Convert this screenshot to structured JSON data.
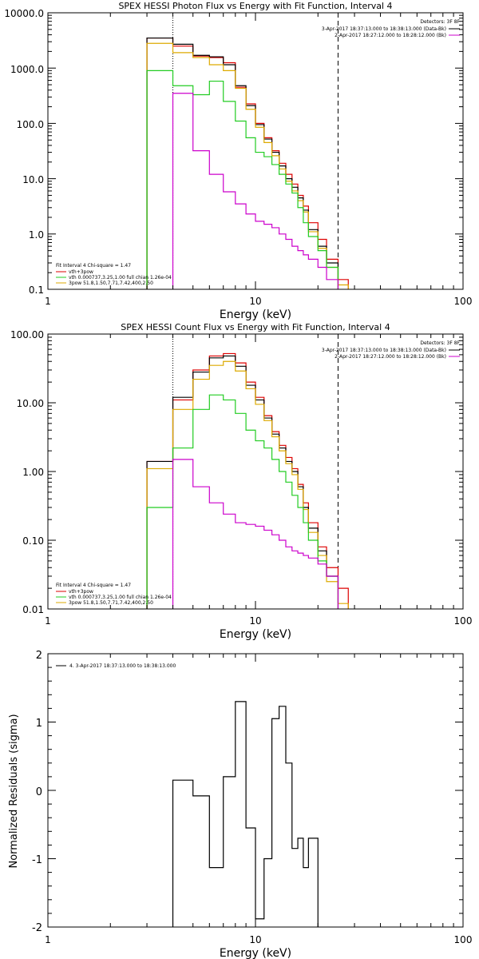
{
  "colors": {
    "black": "#000000",
    "red": "#dd0000",
    "green": "#22cc22",
    "yellow": "#ddaa00",
    "magenta": "#cc00cc",
    "background": "#ffffff"
  },
  "chart_data": [
    {
      "type": "line",
      "title": "SPEX HESSI Photon Flux vs Energy with Fit Function, Interval 4",
      "xlabel": "Energy (keV)",
      "ylabel": "",
      "xscale": "log",
      "yscale": "log",
      "xlim": [
        1,
        100
      ],
      "ylim": [
        0.1,
        10000
      ],
      "x_tick_labels": [
        "1",
        "10",
        "100"
      ],
      "y_tick_labels": [
        "0.1",
        "1.0",
        "10.0",
        "100.0",
        "1000.0",
        "10000.0"
      ],
      "legend_top_right": {
        "header": "Detectors: 3F 8F",
        "entries": [
          "3-Apr-2017 18:37:13.000 to 18:38:13.000 (Data-Bk)",
          "2-Apr-2017 18:27:12.000 to 18:28:12.000 (Bk)"
        ]
      },
      "legend_bottom_left": {
        "header": "Fit Interval 4  Chi-square = 1.47",
        "entries": [
          "vth+3pow",
          "vth 0.000737,3.25,1.00  full chian 1.26e-04",
          "3pow 51.8,1.50,7.71,7.42,400,2.50"
        ]
      },
      "vlines": [
        {
          "x": 4.0,
          "style": "dotted"
        },
        {
          "x": 25.0,
          "style": "dashed"
        }
      ],
      "bin_edges": [
        3,
        4,
        5,
        6,
        7,
        8,
        9,
        10,
        11,
        12,
        13,
        14,
        15,
        16,
        17,
        18,
        20,
        22,
        25,
        28
      ],
      "series": [
        {
          "color_key": "red",
          "values": [
            3500,
            2500,
            1650,
            1550,
            1250,
            450,
            225,
            100,
            55,
            32,
            19,
            12,
            8,
            5,
            3.2,
            1.6,
            0.8,
            0.35,
            0.15
          ]
        },
        {
          "color_key": "black",
          "values": [
            3500,
            2700,
            1700,
            1600,
            1150,
            480,
            210,
            95,
            52,
            30,
            17,
            10,
            7,
            4.5,
            2.7,
            1.2,
            0.6,
            0.3,
            null
          ]
        },
        {
          "color_key": "yellow",
          "values": [
            2800,
            1900,
            1550,
            1150,
            900,
            430,
            180,
            85,
            45,
            26,
            15,
            9,
            6,
            4,
            2.5,
            1.1,
            0.55,
            0.25,
            0.12
          ]
        },
        {
          "color_key": "green",
          "values": [
            900,
            480,
            330,
            580,
            250,
            110,
            55,
            30,
            25,
            18,
            12,
            8,
            5.5,
            3,
            1.6,
            0.9,
            0.5,
            0.25,
            null
          ]
        },
        {
          "color_key": "magenta",
          "values": [
            null,
            350,
            32,
            12,
            5.8,
            3.5,
            2.3,
            1.7,
            1.5,
            1.3,
            1.0,
            0.8,
            0.6,
            0.5,
            0.42,
            0.35,
            0.25,
            0.15,
            null
          ]
        }
      ]
    },
    {
      "type": "line",
      "title": "SPEX HESSI Count Flux vs Energy with Fit Function, Interval 4",
      "xlabel": "Energy (keV)",
      "ylabel": "",
      "xscale": "log",
      "yscale": "log",
      "xlim": [
        1,
        100
      ],
      "ylim": [
        0.01,
        100
      ],
      "x_tick_labels": [
        "1",
        "10",
        "100"
      ],
      "y_tick_labels": [
        "0.01",
        "0.10",
        "1.00",
        "10.00",
        "100.00"
      ],
      "legend_top_right": {
        "header": "Detectors: 3F 8F",
        "entries": [
          "3-Apr-2017 18:37:13.000 to 18:38:13.000 (Data-Bk)",
          "2-Apr-2017 18:27:12.000 to 18:28:12.000 (Bk)"
        ]
      },
      "legend_bottom_left": {
        "header": "Fit Interval 4  Chi-square = 1.47",
        "entries": [
          "vth+3pow",
          "vth 0.000737,3.25,1.00  full chian 1.26e-04",
          "3pow 51.8,1.50,7.71,7.42,400,2.50"
        ]
      },
      "vlines": [
        {
          "x": 4.0,
          "style": "dotted"
        },
        {
          "x": 25.0,
          "style": "dashed"
        }
      ],
      "bin_edges": [
        3,
        4,
        5,
        6,
        7,
        8,
        9,
        10,
        11,
        12,
        13,
        14,
        15,
        16,
        17,
        18,
        20,
        22,
        25,
        28
      ],
      "series": [
        {
          "color_key": "red",
          "values": [
            1.4,
            11,
            30,
            48,
            52,
            38,
            20,
            12,
            6.5,
            3.8,
            2.4,
            1.6,
            1.1,
            0.65,
            0.35,
            0.18,
            0.08,
            0.04,
            0.02
          ]
        },
        {
          "color_key": "black",
          "values": [
            1.4,
            12,
            28,
            45,
            48,
            34,
            18,
            11,
            6,
            3.5,
            2.2,
            1.4,
            1.0,
            0.6,
            0.3,
            0.15,
            0.07,
            0.03,
            null
          ]
        },
        {
          "color_key": "yellow",
          "values": [
            1.1,
            8,
            22,
            35,
            40,
            29,
            16,
            9.5,
            5.5,
            3.2,
            2.0,
            1.3,
            0.9,
            0.55,
            0.28,
            0.13,
            0.06,
            0.025,
            0.012
          ]
        },
        {
          "color_key": "green",
          "values": [
            0.3,
            2.2,
            8,
            13,
            11,
            7,
            4,
            2.8,
            2.2,
            1.5,
            1.0,
            0.7,
            0.45,
            0.3,
            0.18,
            0.1,
            0.05,
            0.03,
            null
          ]
        },
        {
          "color_key": "magenta",
          "values": [
            null,
            1.5,
            0.6,
            0.35,
            0.24,
            0.18,
            0.17,
            0.16,
            0.14,
            0.12,
            0.1,
            0.08,
            0.07,
            0.065,
            0.06,
            0.055,
            0.045,
            0.03,
            null
          ]
        }
      ]
    },
    {
      "type": "line",
      "title": "",
      "xlabel": "Energy (keV)",
      "ylabel": "Normalized Residuals (sigma)",
      "xscale": "log",
      "yscale": "linear",
      "xlim": [
        1,
        100
      ],
      "ylim": [
        -2,
        2
      ],
      "x_tick_labels": [
        "1",
        "10",
        "100"
      ],
      "y_tick_labels": [
        "-2",
        "-1",
        "0",
        "1",
        "2"
      ],
      "legend_top_left": {
        "entries": [
          "4. 3-Apr-2017 18:37:13.000 to 18:38:13.000"
        ]
      },
      "bin_edges": [
        4,
        5,
        6,
        7,
        8,
        9,
        10,
        11,
        12,
        13,
        14,
        15,
        16,
        17,
        18,
        20,
        22,
        25
      ],
      "series": [
        {
          "color_key": "black",
          "values": [
            0.15,
            -0.08,
            -1.13,
            0.2,
            1.3,
            -0.55,
            -1.88,
            -1.0,
            1.05,
            1.23,
            0.4,
            -0.85,
            -0.7,
            -1.13,
            -0.7,
            null,
            null
          ]
        }
      ]
    }
  ]
}
